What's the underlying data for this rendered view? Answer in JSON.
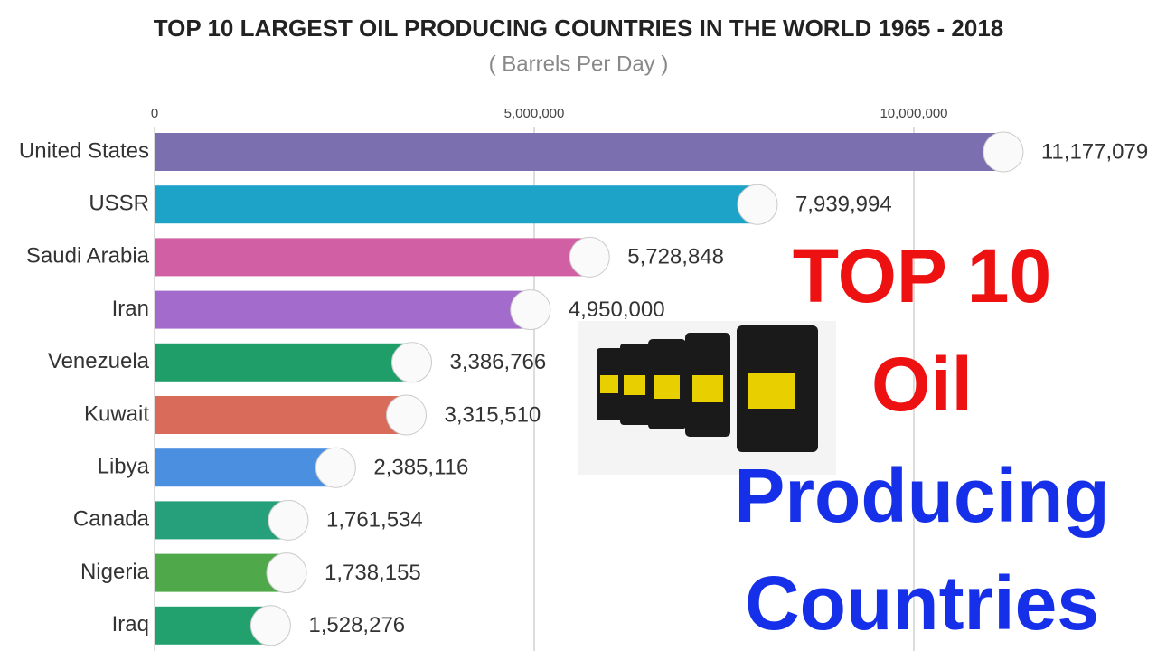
{
  "chart_data": {
    "type": "bar",
    "orientation": "horizontal",
    "title": "TOP 10 LARGEST OIL PRODUCING COUNTRIES IN THE WORLD 1965 - 2018",
    "subtitle": "( Barrels Per Day )",
    "categories": [
      "United States",
      "USSR",
      "Saudi Arabia",
      "Iran",
      "Venezuela",
      "Kuwait",
      "Libya",
      "Canada",
      "Nigeria",
      "Iraq"
    ],
    "values": [
      11177079,
      7939994,
      5728848,
      4950000,
      3386766,
      3315510,
      2385116,
      1761534,
      1738155,
      1528276
    ],
    "value_labels": [
      "11,177,079",
      "7,939,994",
      "5,728,848",
      "4,950,000",
      "3,386,766",
      "3,315,510",
      "2,385,116",
      "1,761,534",
      "1,738,155",
      "1,528,276"
    ],
    "colors": [
      "#7b6fb0",
      "#1ea3c8",
      "#d05fa3",
      "#a36ccc",
      "#1f9e6a",
      "#d96b5a",
      "#4a8fe0",
      "#25a07a",
      "#4fa84a",
      "#22a06e"
    ],
    "xlim": [
      0,
      13200000
    ],
    "xticks": [
      0,
      {
        "value": 5000000,
        "label": "5,000,000"
      },
      {
        "value": 10000000,
        "label": "10,000,000"
      }
    ],
    "grid": true,
    "annotations": [
      {
        "text": "TOP 10",
        "color": "#ee1111"
      },
      {
        "text": "Oil",
        "color": "#ee1111"
      },
      {
        "text": "Producing",
        "color": "#1530e8"
      },
      {
        "text": "Countries",
        "color": "#1530e8"
      }
    ]
  }
}
